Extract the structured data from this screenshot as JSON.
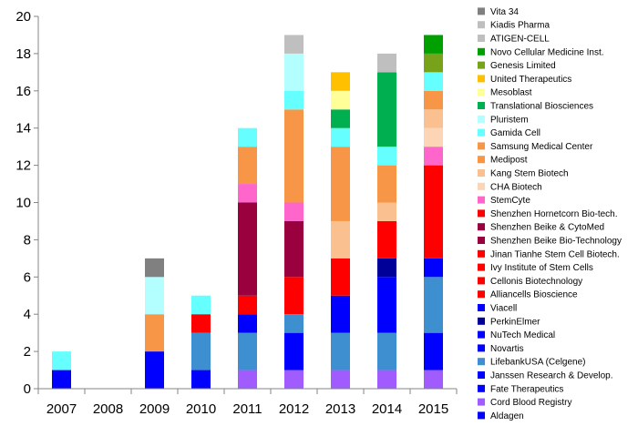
{
  "chart_data": {
    "type": "bar",
    "stacked": true,
    "title": "",
    "xlabel": "",
    "ylabel": "",
    "ylim": [
      0,
      20
    ],
    "yticks": [
      0,
      2,
      4,
      6,
      8,
      10,
      12,
      14,
      16,
      18,
      20
    ],
    "grid": false,
    "legend_position": "right",
    "categories": [
      "2007",
      "2008",
      "2009",
      "2010",
      "2011",
      "2012",
      "2013",
      "2014",
      "2015"
    ],
    "series": [
      {
        "name": "Aldagen",
        "color": "#0000ff",
        "values": [
          1,
          0,
          0,
          0,
          0,
          0,
          0,
          0,
          0
        ]
      },
      {
        "name": "Cord Blood Registry",
        "color": "#a05cff",
        "values": [
          0,
          0,
          0,
          0,
          1,
          1,
          1,
          1,
          1
        ]
      },
      {
        "name": "Fate Therapeutics",
        "color": "#0000ff",
        "values": [
          0,
          0,
          0,
          0,
          0,
          0,
          0,
          0,
          0
        ]
      },
      {
        "name": "Janssen Research & Develop.",
        "color": "#0000ff",
        "values": [
          0,
          0,
          0,
          1,
          0,
          2,
          0,
          0,
          2
        ]
      },
      {
        "name": "LifebankUSA (Celgene)",
        "color": "#3d8fcf",
        "values": [
          0,
          0,
          0,
          2,
          2,
          1,
          2,
          2,
          3
        ]
      },
      {
        "name": "Novartis",
        "color": "#0000ff",
        "values": [
          0,
          0,
          2,
          0,
          1,
          0,
          2,
          3,
          1
        ]
      },
      {
        "name": "NuTech Medical",
        "color": "#0000ff",
        "values": [
          0,
          0,
          0,
          0,
          0,
          0,
          0,
          0,
          0
        ]
      },
      {
        "name": "PerkinElmer",
        "color": "#000099",
        "values": [
          0,
          0,
          0,
          0,
          0,
          0,
          0,
          1,
          0
        ]
      },
      {
        "name": "Viacell",
        "color": "#0000ff",
        "values": [
          0,
          0,
          0,
          0,
          0,
          0,
          0,
          0,
          0
        ]
      },
      {
        "name": "Alliancells Bioscience",
        "color": "#ff0000",
        "values": [
          0,
          0,
          0,
          1,
          1,
          2,
          2,
          2,
          5
        ]
      },
      {
        "name": "Cellonis Biotechnology",
        "color": "#ff0000",
        "values": [
          0,
          0,
          0,
          0,
          0,
          0,
          0,
          0,
          0
        ]
      },
      {
        "name": "Ivy Institute of Stem Cells",
        "color": "#ff0000",
        "values": [
          0,
          0,
          0,
          0,
          0,
          0,
          0,
          0,
          0
        ]
      },
      {
        "name": "Jinan Tianhe Stem Cell Biotech.",
        "color": "#ff0000",
        "values": [
          0,
          0,
          0,
          0,
          0,
          0,
          0,
          0,
          0
        ]
      },
      {
        "name": "Shenzhen Beike Bio-Technology",
        "color": "#99003d",
        "values": [
          0,
          0,
          0,
          0,
          5,
          3,
          0,
          0,
          0
        ]
      },
      {
        "name": "Shenzhen Beike & CytoMed",
        "color": "#99003d",
        "values": [
          0,
          0,
          0,
          0,
          0,
          0,
          0,
          0,
          0
        ]
      },
      {
        "name": "Shenzhen Hornetcorn Bio-tech.",
        "color": "#ff0000",
        "values": [
          0,
          0,
          0,
          0,
          0,
          0,
          0,
          0,
          0
        ]
      },
      {
        "name": "StemCyte",
        "color": "#ff66cc",
        "values": [
          0,
          0,
          0,
          0,
          1,
          1,
          0,
          0,
          1
        ]
      },
      {
        "name": "CHA Biotech",
        "color": "#fbd5b5",
        "values": [
          0,
          0,
          0,
          0,
          0,
          0,
          0,
          0,
          1
        ]
      },
      {
        "name": "Kang Stem Biotech",
        "color": "#fac090",
        "values": [
          0,
          0,
          0,
          0,
          0,
          0,
          2,
          1,
          1
        ]
      },
      {
        "name": "Medipost",
        "color": "#f79646",
        "values": [
          0,
          0,
          2,
          0,
          2,
          5,
          4,
          2,
          1
        ]
      },
      {
        "name": "Samsung Medical Center",
        "color": "#f79646",
        "values": [
          0,
          0,
          0,
          0,
          0,
          0,
          0,
          0,
          0
        ]
      },
      {
        "name": "Gamida Cell",
        "color": "#66ffff",
        "values": [
          1,
          0,
          0,
          1,
          1,
          1,
          1,
          1,
          1
        ]
      },
      {
        "name": "Pluristem",
        "color": "#b3ffff",
        "values": [
          0,
          0,
          2,
          0,
          0,
          2,
          0,
          0,
          0
        ]
      },
      {
        "name": "Translational Biosciences",
        "color": "#00b050",
        "values": [
          0,
          0,
          0,
          0,
          0,
          0,
          1,
          4,
          0
        ]
      },
      {
        "name": "Mesoblast",
        "color": "#ffff99",
        "values": [
          0,
          0,
          0,
          0,
          0,
          0,
          1,
          0,
          0
        ]
      },
      {
        "name": "United Therapeutics",
        "color": "#ffc000",
        "values": [
          0,
          0,
          0,
          0,
          0,
          0,
          1,
          0,
          0
        ]
      },
      {
        "name": "Genesis Limited",
        "color": "#77a21a",
        "values": [
          0,
          0,
          0,
          0,
          0,
          0,
          0,
          0,
          1
        ]
      },
      {
        "name": "Novo Cellular Medicine Inst.",
        "color": "#00a000",
        "values": [
          0,
          0,
          0,
          0,
          0,
          0,
          0,
          0,
          1
        ]
      },
      {
        "name": "ATIGEN-CELL",
        "color": "#bfbfbf",
        "values": [
          0,
          0,
          0,
          0,
          0,
          1,
          0,
          1,
          0
        ]
      },
      {
        "name": "Kiadis Pharma",
        "color": "#bfbfbf",
        "values": [
          0,
          0,
          0,
          0,
          0,
          0,
          0,
          0,
          0
        ]
      },
      {
        "name": "Vita 34",
        "color": "#808080",
        "values": [
          0,
          0,
          1,
          0,
          0,
          0,
          0,
          0,
          0
        ]
      }
    ]
  }
}
